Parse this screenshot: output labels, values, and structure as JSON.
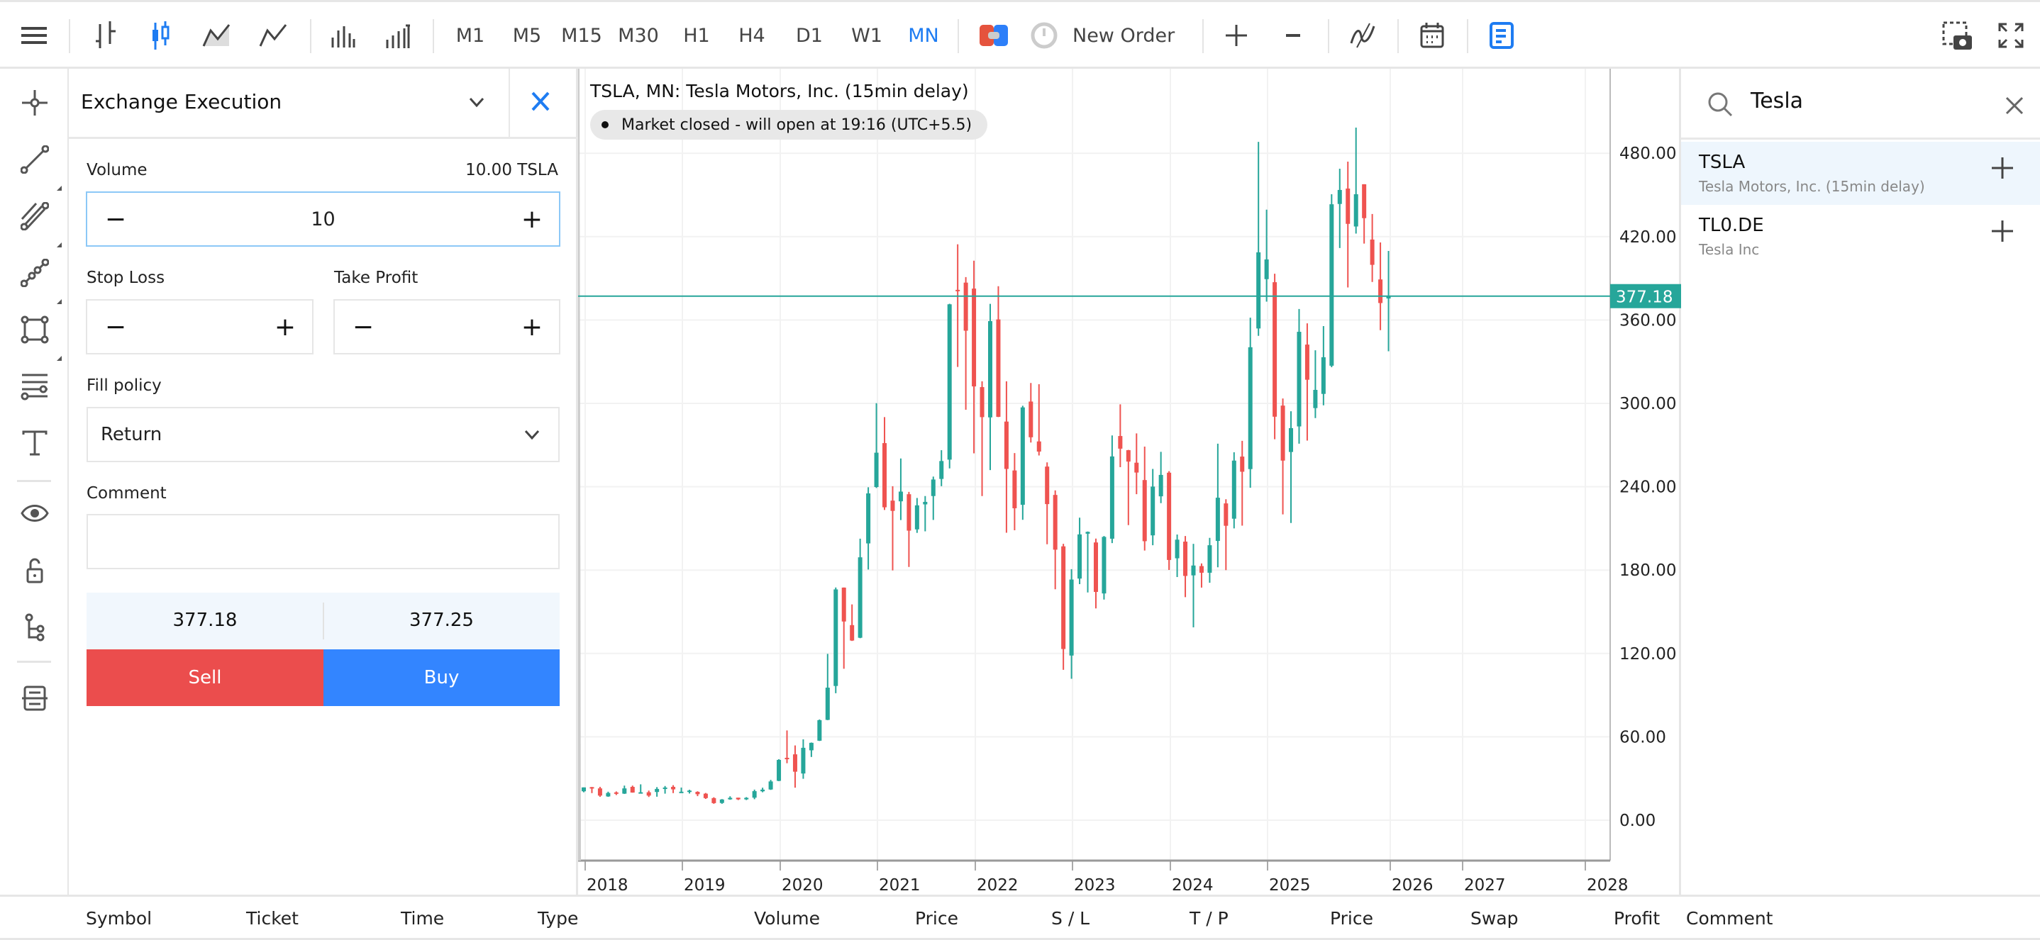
{
  "toolbar": {
    "timeframes": [
      "M1",
      "M5",
      "M15",
      "M30",
      "H1",
      "H4",
      "D1",
      "W1",
      "MN"
    ],
    "active_timeframe": "MN",
    "new_order_label": "New Order"
  },
  "order_panel": {
    "title": "Exchange Execution",
    "volume_label": "Volume",
    "volume_units": "10.00 TSLA",
    "volume_value": "10",
    "stop_loss_label": "Stop Loss",
    "take_profit_label": "Take Profit",
    "fill_policy_label": "Fill policy",
    "fill_policy_value": "Return",
    "comment_label": "Comment",
    "comment_value": "",
    "bid": "377.18",
    "ask": "377.25",
    "sell_label": "Sell",
    "buy_label": "Buy"
  },
  "chart": {
    "title": "TSLA, MN: Tesla Motors, Inc. (15min delay)",
    "status": "Market closed - will open at 19:16 (UTC+5.5)",
    "current_price": "377.18",
    "price_ticks": [
      "0.00",
      "60.00",
      "120.00",
      "180.00",
      "240.00",
      "300.00",
      "360.00",
      "420.00",
      "480.00"
    ],
    "year_ticks": [
      "2018",
      "2019",
      "2020",
      "2021",
      "2022",
      "2023",
      "2024",
      "2025",
      "2026",
      "2027",
      "2028"
    ],
    "colors": {
      "up": "#26a69a",
      "down": "#ef5350"
    }
  },
  "chart_data": {
    "type": "candlestick",
    "title": "TSLA, MN: Tesla Motors, Inc. (15min delay)",
    "interval": "monthly",
    "start": "2018-01",
    "ylim": [
      -50,
      540
    ],
    "ohlc": [
      [
        20.8,
        23.6,
        20.1,
        23.6
      ],
      [
        23.8,
        23.9,
        19.5,
        22.9
      ],
      [
        22.9,
        24.0,
        16.8,
        17.7
      ],
      [
        17.1,
        20.5,
        16.8,
        19.6
      ],
      [
        20.0,
        20.7,
        18.1,
        19.0
      ],
      [
        19.1,
        24.9,
        18.9,
        22.9
      ],
      [
        24.0,
        24.9,
        19.8,
        19.9
      ],
      [
        19.9,
        25.8,
        19.9,
        20.1
      ],
      [
        20.1,
        21.3,
        16.7,
        17.7
      ],
      [
        20.3,
        23.8,
        16.9,
        22.5
      ],
      [
        22.8,
        24.6,
        19.1,
        23.5
      ],
      [
        24.0,
        25.2,
        19.5,
        22.2
      ],
      [
        20.4,
        23.5,
        19.8,
        20.5
      ],
      [
        20.6,
        21.9,
        19.2,
        21.3
      ],
      [
        20.4,
        20.8,
        17.3,
        18.7
      ],
      [
        19.1,
        19.6,
        15.3,
        15.9
      ],
      [
        15.9,
        16.5,
        11.8,
        12.3
      ],
      [
        12.4,
        15.2,
        11.8,
        14.9
      ],
      [
        15.0,
        17.2,
        14.7,
        16.1
      ],
      [
        16.2,
        16.2,
        14.5,
        15.0
      ],
      [
        15.0,
        16.6,
        14.5,
        16.1
      ],
      [
        16.2,
        22.0,
        15.1,
        20.9
      ],
      [
        20.8,
        23.4,
        20.1,
        22.0
      ],
      [
        22.1,
        29.0,
        21.8,
        27.9
      ],
      [
        28.3,
        43.9,
        28.1,
        43.4
      ],
      [
        44.9,
        64.6,
        41.0,
        44.5
      ],
      [
        47.4,
        53.8,
        23.4,
        34.9
      ],
      [
        33.6,
        58.2,
        29.8,
        52.1
      ],
      [
        50.3,
        55.9,
        45.5,
        55.7
      ],
      [
        57.2,
        72.5,
        57.0,
        72.0
      ],
      [
        72.2,
        119.7,
        72.0,
        95.4
      ],
      [
        96.6,
        167.5,
        91.4,
        166.1
      ],
      [
        167.4,
        167.5,
        109.0,
        143.0
      ],
      [
        140.4,
        155.3,
        129.0,
        129.3
      ],
      [
        131.3,
        202.6,
        131.0,
        189.2
      ],
      [
        199.2,
        239.6,
        180.4,
        235.2
      ],
      [
        239.8,
        300.1,
        239.1,
        264.5
      ],
      [
        271.4,
        290.1,
        223.3,
        225.2
      ],
      [
        230.0,
        240.4,
        179.8,
        222.6
      ],
      [
        229.5,
        260.3,
        216.0,
        236.5
      ],
      [
        234.6,
        236.3,
        182.3,
        208.4
      ],
      [
        209.3,
        231.9,
        206.8,
        226.6
      ],
      [
        227.3,
        233.3,
        207.9,
        229.1
      ],
      [
        233.3,
        247.3,
        216.1,
        245.2
      ],
      [
        245.6,
        266.3,
        240.4,
        258.5
      ],
      [
        259.5,
        371.7,
        253.2,
        371.3
      ],
      [
        381.7,
        414.5,
        326.2,
        381.6
      ],
      [
        386.9,
        390.9,
        295.4,
        352.3
      ],
      [
        382.6,
        402.7,
        264.0,
        312.2
      ],
      [
        311.7,
        315.9,
        233.3,
        290.1
      ],
      [
        289.9,
        371.6,
        252.0,
        359.2
      ],
      [
        360.4,
        384.3,
        290.1,
        290.3
      ],
      [
        286.9,
        315.9,
        206.9,
        252.8
      ],
      [
        251.7,
        264.2,
        208.7,
        224.5
      ],
      [
        227.0,
        298.3,
        216.2,
        297.1
      ],
      [
        301.3,
        314.7,
        271.8,
        275.6
      ],
      [
        272.6,
        313.8,
        262.5,
        265.3
      ],
      [
        254.5,
        257.5,
        198.6,
        227.5
      ],
      [
        234.1,
        237.4,
        166.2,
        194.7
      ],
      [
        197.1,
        198.9,
        108.2,
        123.2
      ],
      [
        118.5,
        180.7,
        101.8,
        173.2
      ],
      [
        173.9,
        217.7,
        169.9,
        205.7
      ],
      [
        206.2,
        207.8,
        163.9,
        207.5
      ],
      [
        199.9,
        202.7,
        152.4,
        164.3
      ],
      [
        163.2,
        204.5,
        158.8,
        203.9
      ],
      [
        202.6,
        276.9,
        199.4,
        261.8
      ],
      [
        276.5,
        299.3,
        254.1,
        267.4
      ],
      [
        266.3,
        266.5,
        212.4,
        258.1
      ],
      [
        257.3,
        278.4,
        234.6,
        250.2
      ],
      [
        244.8,
        268.9,
        194.1,
        200.8
      ],
      [
        205.0,
        252.8,
        197.9,
        240.1
      ],
      [
        233.1,
        265.1,
        228.2,
        248.5
      ],
      [
        250.1,
        251.2,
        180.1,
        187.3
      ],
      [
        188.5,
        205.6,
        175.0,
        201.9
      ],
      [
        200.5,
        204.5,
        160.5,
        175.8
      ],
      [
        176.2,
        198.9,
        138.8,
        183.3
      ],
      [
        182.9,
        184.8,
        167.4,
        178.1
      ],
      [
        178.1,
        203.2,
        170.9,
        197.9
      ],
      [
        201.0,
        271.0,
        182.0,
        232.1
      ],
      [
        228.0,
        231.0,
        180.0,
        211.9
      ],
      [
        217.0,
        264.8,
        210.0,
        258.8
      ],
      [
        261.7,
        273.0,
        212.0,
        250.8
      ],
      [
        252.7,
        361.7,
        239.3,
        340.4
      ],
      [
        353.9,
        488.2,
        348.6,
        408.7
      ],
      [
        389.4,
        439.4,
        373.2,
        403.6
      ],
      [
        387.2,
        393.3,
        274.2,
        290.4
      ],
      [
        298.4,
        303.5,
        220.1,
        258.8
      ],
      [
        265.0,
        294.3,
        213.9,
        282.2
      ],
      [
        283.4,
        367.9,
        271.0,
        351.5
      ],
      [
        342.3,
        357.6,
        273.2,
        317.0
      ],
      [
        296.6,
        338.2,
        289.4,
        309.7
      ],
      [
        306.8,
        355.6,
        298.6,
        333.2
      ],
      [
        327.1,
        450.5,
        326.0,
        443.3
      ],
      [
        443.5,
        468.9,
        411.8,
        453.6
      ],
      [
        454.6,
        474.0,
        383.4,
        429.2
      ],
      [
        427.3,
        498.5,
        422.2,
        450.5
      ],
      [
        457.7,
        457.7,
        415.0,
        433.3
      ],
      [
        417.9,
        436.3,
        387.4,
        399.7
      ],
      [
        389.2,
        415.8,
        352.7,
        372.2
      ],
      [
        375.5,
        409.7,
        337.5,
        377.18
      ]
    ]
  },
  "search": {
    "query": "Tesla",
    "results": [
      {
        "symbol": "TSLA",
        "description": "Tesla Motors, Inc. (15min delay)"
      },
      {
        "symbol": "TL0.DE",
        "description": "Tesla Inc"
      }
    ]
  },
  "positions_table": {
    "columns": [
      "Symbol",
      "Ticket",
      "Time",
      "Type",
      "Volume",
      "Price",
      "S / L",
      "T / P",
      "Price",
      "Swap",
      "Profit",
      "Comment"
    ]
  }
}
